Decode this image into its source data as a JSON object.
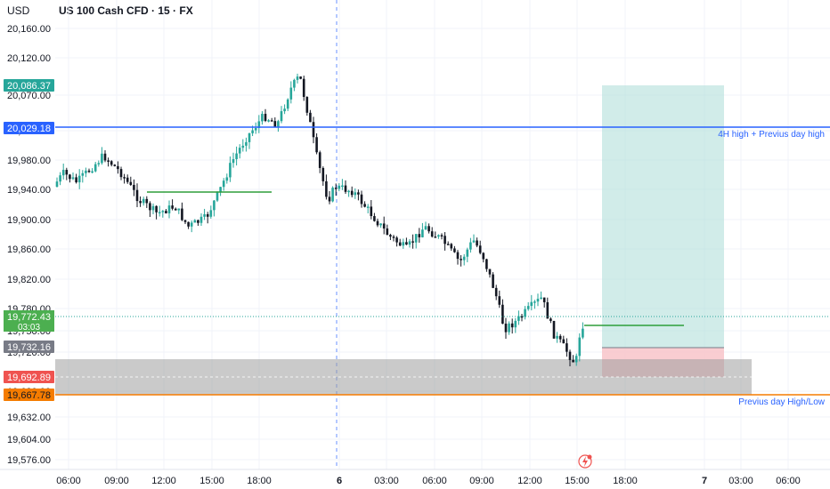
{
  "header": {
    "currency": "USD",
    "symbol": "US 100 Cash CFD · 15 · FX"
  },
  "y_axis": {
    "ticks": [
      "20,160.00",
      "20,120.00",
      "20,070.00",
      "20,020.00",
      "19,980.00",
      "19,940.00",
      "19,900.00",
      "19,860.00",
      "19,820.00",
      "19,780.00",
      "19,750.00",
      "19,720.00",
      "19,680.00",
      "19,632.00",
      "19,604.00",
      "19,576.00"
    ]
  },
  "x_axis": {
    "ticks": [
      "06:00",
      "09:00",
      "12:00",
      "15:00",
      "18:00",
      "6",
      "03:00",
      "06:00",
      "09:00",
      "12:00",
      "15:00",
      "18:00",
      "7",
      "03:00",
      "06:00"
    ]
  },
  "price_tags": {
    "target": "20,086.37",
    "level_4h": "20,029.18",
    "last_price": "19,772.43",
    "countdown": "03:03",
    "entry": "19,732.16",
    "stop": "19,692.89",
    "prev_low": "19,667.78"
  },
  "annotations": {
    "line_4h": "4H high + Previus day high",
    "line_prev": "Previus day High/Low"
  },
  "colors": {
    "up": "#26a69a",
    "down": "#131722",
    "blue_line": "#2962ff",
    "orange_line": "#f57c00",
    "target_zone": "#b2dfdb",
    "stop_zone": "#f8c8cc",
    "gray_zone": "#9e9e9e"
  },
  "chart_data": {
    "type": "candlestick",
    "instrument": "US 100 Cash CFD",
    "timeframe": "15",
    "horizontal_levels": [
      {
        "label": "4H high + Previus day high",
        "price": 20029.18
      },
      {
        "label": "Previus day High/Low",
        "price": 19667.78
      }
    ],
    "position": {
      "target": 20086.37,
      "entry": 19732.16,
      "stop": 19692.89
    },
    "last_price": 19772.43
  }
}
